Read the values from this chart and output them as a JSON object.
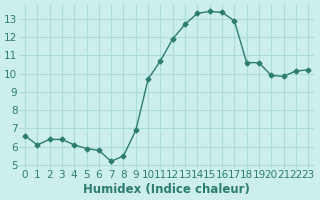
{
  "x": [
    0,
    1,
    2,
    3,
    4,
    5,
    6,
    7,
    8,
    9,
    10,
    11,
    12,
    13,
    14,
    15,
    16,
    17,
    18,
    19,
    20,
    21,
    22,
    23
  ],
  "y": [
    6.6,
    6.1,
    6.4,
    6.4,
    6.1,
    5.9,
    5.8,
    5.2,
    5.5,
    6.9,
    9.7,
    10.7,
    11.9,
    12.7,
    13.3,
    13.4,
    13.35,
    12.9,
    10.6,
    10.6,
    9.9,
    9.85,
    10.15,
    10.2
  ],
  "line_color": "#2d7d6e",
  "marker": "D",
  "marker_size": 2.5,
  "bg_color": "#cceeed",
  "grid_color": "#aaddda",
  "xlabel": "Humidex (Indice chaleur)",
  "ylim": [
    4.8,
    13.8
  ],
  "xlim": [
    -0.5,
    23.5
  ],
  "yticks": [
    5,
    6,
    7,
    8,
    9,
    10,
    11,
    12,
    13
  ],
  "xticks": [
    0,
    1,
    2,
    3,
    4,
    5,
    6,
    7,
    8,
    9,
    10,
    11,
    12,
    13,
    14,
    15,
    16,
    17,
    18,
    19,
    20,
    21,
    22,
    23
  ],
  "xlabel_fontsize": 8.5,
  "tick_fontsize": 7.5,
  "label_color": "#2d7d6e",
  "linewidth": 1.0
}
